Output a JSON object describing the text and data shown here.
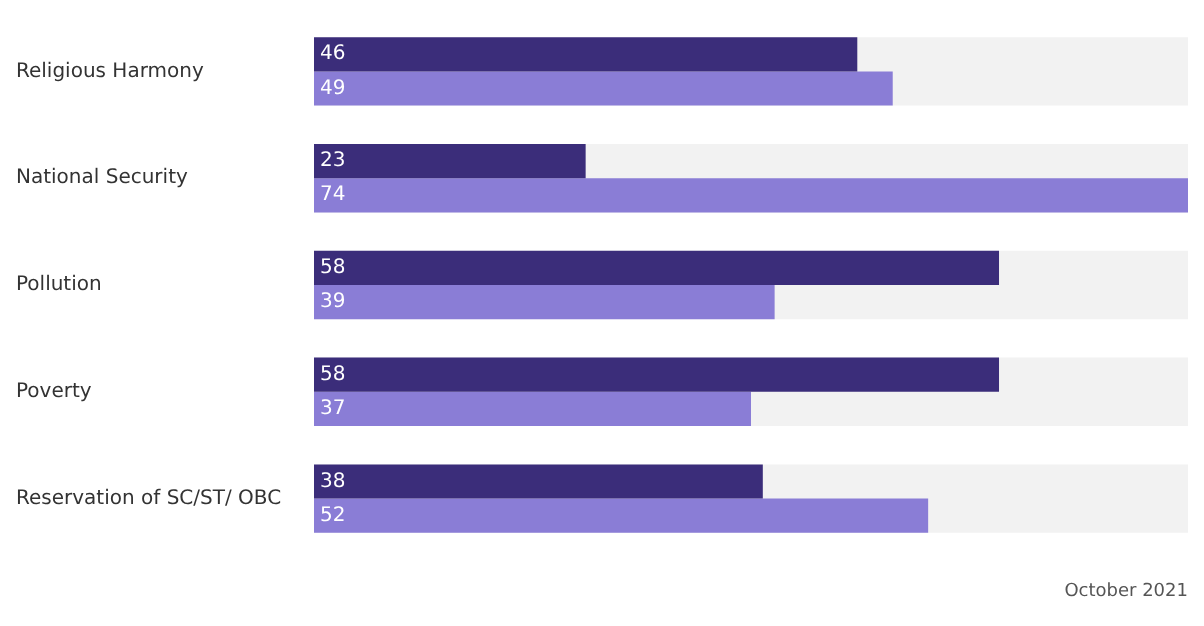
{
  "chart_data": {
    "type": "bar",
    "orientation": "horizontal",
    "categories": [
      "Religious Harmony",
      "National Security",
      "Pollution",
      "Poverty",
      "Reservation of SC/ST/ OBC"
    ],
    "series": [
      {
        "color": "#3b2d7a",
        "values": [
          46,
          23,
          58,
          58,
          38
        ]
      },
      {
        "color": "#8a7dd6",
        "values": [
          49,
          74,
          39,
          37,
          52
        ]
      }
    ],
    "xlim": [
      0,
      74
    ],
    "data_labels": true,
    "legend": false,
    "bands": [
      {
        "axis": "y",
        "from": "Religious Harmony",
        "to": "Religious Harmony",
        "color": "#f2f2f2"
      },
      {
        "axis": "y",
        "from": "National Security",
        "to": "National Security",
        "color": "#f2f2f2"
      },
      {
        "axis": "y",
        "from": "Pollution",
        "to": "Pollution",
        "color": "#f2f2f2"
      },
      {
        "axis": "y",
        "from": "Poverty",
        "to": "Poverty",
        "color": "#f2f2f2"
      },
      {
        "axis": "y",
        "from": "Reservation of SC/ST/ OBC",
        "to": "Reservation of SC/ST/ OBC",
        "color": "#f2f2f2"
      }
    ],
    "tick_labels": "y",
    "annotations": [
      "October 2021"
    ]
  }
}
